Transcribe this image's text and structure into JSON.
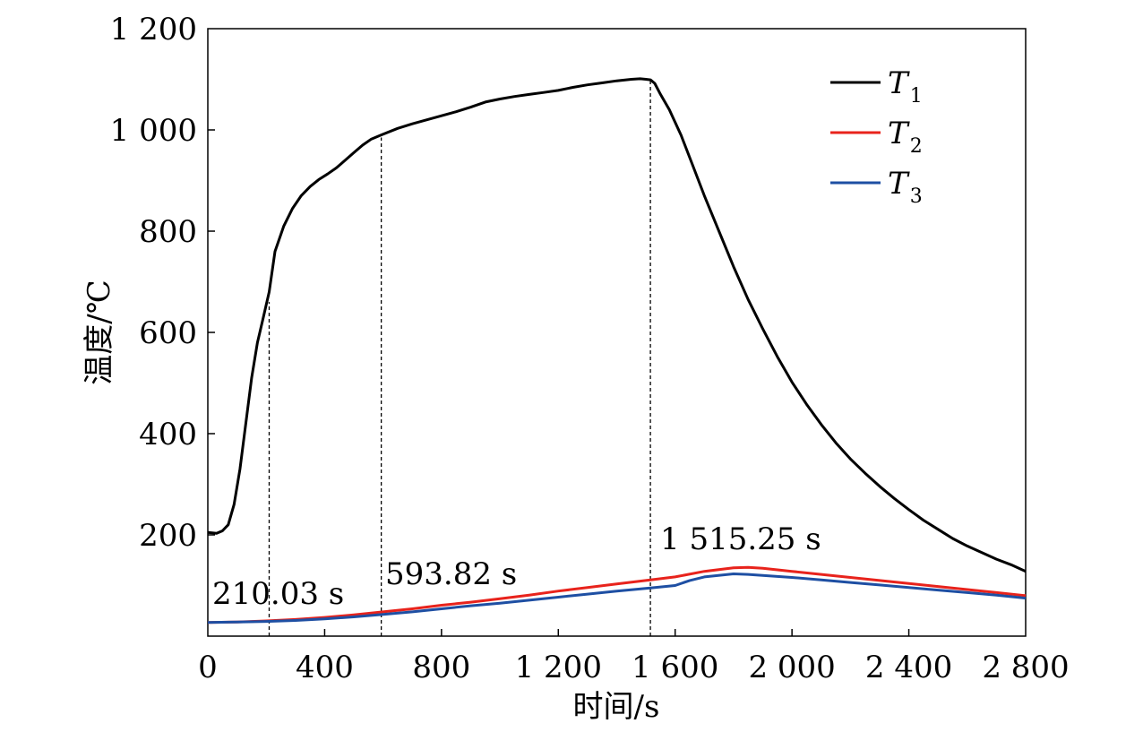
{
  "chart_data": {
    "type": "line",
    "title": "",
    "xlabel": "时间/s",
    "ylabel": "温度/℃",
    "xlim": [
      0,
      2800
    ],
    "ylim": [
      0,
      1200
    ],
    "x_ticks": [
      0,
      400,
      800,
      1200,
      1600,
      2000,
      2400,
      2800
    ],
    "x_tick_labels": [
      "0",
      "400",
      "800",
      "1 200",
      "1 600",
      "2 000",
      "2 400",
      "2 800"
    ],
    "y_ticks": [
      200,
      400,
      600,
      800,
      1000,
      1200
    ],
    "y_tick_labels": [
      "200",
      "400",
      "600",
      "800",
      "1 000",
      "1 200"
    ],
    "grid": false,
    "legend_position": "top-right",
    "series": [
      {
        "name": "T",
        "subscript": "1",
        "color": "#000000",
        "x": [
          0,
          30,
          50,
          70,
          90,
          110,
          130,
          150,
          170,
          190,
          210,
          230,
          260,
          290,
          320,
          350,
          380,
          410,
          440,
          470,
          500,
          530,
          560,
          593.82,
          650,
          700,
          750,
          800,
          850,
          900,
          950,
          1000,
          1050,
          1100,
          1150,
          1200,
          1250,
          1300,
          1350,
          1400,
          1450,
          1480,
          1500,
          1515.25,
          1530,
          1550,
          1580,
          1620,
          1660,
          1700,
          1750,
          1800,
          1850,
          1900,
          1950,
          2000,
          2050,
          2100,
          2150,
          2200,
          2250,
          2300,
          2350,
          2400,
          2450,
          2500,
          2550,
          2600,
          2650,
          2700,
          2750,
          2800
        ],
        "y": [
          205,
          203,
          208,
          220,
          260,
          330,
          420,
          510,
          580,
          630,
          680,
          760,
          810,
          845,
          870,
          888,
          902,
          913,
          925,
          940,
          955,
          970,
          982,
          990,
          1003,
          1012,
          1020,
          1028,
          1036,
          1045,
          1055,
          1061,
          1066,
          1070,
          1074,
          1078,
          1084,
          1089,
          1093,
          1097,
          1100,
          1101,
          1100,
          1099,
          1092,
          1070,
          1040,
          990,
          930,
          870,
          800,
          730,
          665,
          607,
          552,
          502,
          458,
          418,
          382,
          350,
          322,
          296,
          272,
          250,
          229,
          211,
          193,
          178,
          165,
          152,
          141,
          128
        ]
      },
      {
        "name": "T",
        "subscript": "2",
        "color": "#e8231c",
        "x": [
          0,
          100,
          200,
          300,
          400,
          500,
          600,
          700,
          800,
          900,
          1000,
          1100,
          1200,
          1300,
          1400,
          1515.25,
          1600,
          1700,
          1800,
          1850,
          1900,
          2000,
          2100,
          2200,
          2300,
          2400,
          2500,
          2600,
          2700,
          2800
        ],
        "y": [
          27,
          28,
          30,
          33,
          37,
          42,
          48,
          54,
          61,
          67,
          74,
          81,
          89,
          96,
          103,
          111,
          117,
          128,
          135,
          136,
          134,
          128,
          122,
          116,
          110,
          104,
          98,
          92,
          86,
          80
        ]
      },
      {
        "name": "T",
        "subscript": "3",
        "color": "#1e4fa3",
        "x": [
          0,
          100,
          200,
          300,
          400,
          500,
          600,
          700,
          800,
          900,
          1000,
          1100,
          1200,
          1300,
          1400,
          1515.25,
          1600,
          1650,
          1700,
          1800,
          1850,
          1900,
          2000,
          2100,
          2200,
          2300,
          2400,
          2500,
          2600,
          2700,
          2800
        ],
        "y": [
          27,
          28,
          29,
          31,
          34,
          38,
          43,
          48,
          54,
          60,
          65,
          71,
          77,
          83,
          89,
          95,
          100,
          110,
          117,
          123,
          122,
          120,
          116,
          111,
          106,
          101,
          96,
          91,
          86,
          81,
          75
        ]
      }
    ],
    "markers": [
      {
        "x": 210.03,
        "y_top": 660,
        "label": "210.03 s"
      },
      {
        "x": 593.82,
        "y_top": 985,
        "label": "593.82 s"
      },
      {
        "x": 1515.25,
        "y_top": 1098,
        "label": "1 515.25 s"
      }
    ]
  }
}
